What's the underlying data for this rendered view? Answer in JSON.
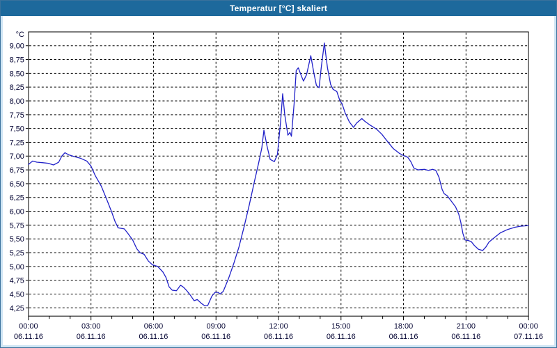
{
  "window": {
    "title": "Temperatur [°C] skaliert"
  },
  "colors": {
    "titlebar": "#1d699c",
    "title_text": "#ffffff",
    "frame": "#cfe5f4",
    "frame_border": "#39719c",
    "plot_background": "#ffffff",
    "plot_border": "#000000",
    "grid": "#000000",
    "axis_text": "#000030",
    "line": "#2020c8"
  },
  "chart_data": {
    "type": "line",
    "title": "Temperatur [°C] skaliert",
    "grid": {
      "dashed": true,
      "horizontal": true,
      "vertical": true
    },
    "legend": "none",
    "y_axis": {
      "unit_label": "°C",
      "range": [
        4.1,
        9.25
      ],
      "tick_values": [
        9.0,
        8.75,
        8.5,
        8.25,
        8.0,
        7.75,
        7.5,
        7.25,
        7.0,
        6.75,
        6.5,
        6.25,
        6.0,
        5.75,
        5.5,
        5.25,
        5.0,
        4.75,
        4.5,
        4.25
      ],
      "tick_labels": [
        "9,00",
        "8,75",
        "8,50",
        "8,25",
        "8,00",
        "7,75",
        "7,50",
        "7,25",
        "7,00",
        "6,75",
        "6,50",
        "6,25",
        "6,00",
        "5,75",
        "5,50",
        "5,25",
        "5,00",
        "4,75",
        "4,50",
        "4,25"
      ]
    },
    "x_axis": {
      "range_hours": [
        0,
        24
      ],
      "major_tick_every_hours": 3,
      "minor_tick_every_hours": 1,
      "tick_labels": [
        {
          "time": "00:00",
          "date": "06.11.16"
        },
        {
          "time": "03:00",
          "date": "06.11.16"
        },
        {
          "time": "06:00",
          "date": "06.11.16"
        },
        {
          "time": "09:00",
          "date": "06.11.16"
        },
        {
          "time": "12:00",
          "date": "06.11.16"
        },
        {
          "time": "15:00",
          "date": "06.11.16"
        },
        {
          "time": "18:00",
          "date": "06.11.16"
        },
        {
          "time": "21:00",
          "date": "06.11.16"
        },
        {
          "time": "00:00",
          "date": "07.11.16"
        }
      ]
    },
    "series": [
      {
        "name": "Temperatur [°C]",
        "color": "#2020c8",
        "points": [
          [
            0.0,
            6.85
          ],
          [
            0.2,
            6.91
          ],
          [
            0.4,
            6.89
          ],
          [
            0.7,
            6.88
          ],
          [
            0.95,
            6.87
          ],
          [
            1.2,
            6.84
          ],
          [
            1.45,
            6.89
          ],
          [
            1.6,
            7.0
          ],
          [
            1.75,
            7.06
          ],
          [
            1.95,
            7.02
          ],
          [
            2.2,
            6.99
          ],
          [
            2.5,
            6.96
          ],
          [
            2.8,
            6.91
          ],
          [
            3.0,
            6.82
          ],
          [
            3.2,
            6.65
          ],
          [
            3.5,
            6.45
          ],
          [
            3.75,
            6.22
          ],
          [
            4.0,
            5.98
          ],
          [
            4.15,
            5.82
          ],
          [
            4.3,
            5.7
          ],
          [
            4.6,
            5.68
          ],
          [
            4.75,
            5.61
          ],
          [
            5.0,
            5.48
          ],
          [
            5.2,
            5.32
          ],
          [
            5.35,
            5.25
          ],
          [
            5.55,
            5.22
          ],
          [
            5.75,
            5.1
          ],
          [
            5.95,
            5.03
          ],
          [
            6.2,
            5.0
          ],
          [
            6.45,
            4.9
          ],
          [
            6.6,
            4.8
          ],
          [
            6.75,
            4.63
          ],
          [
            6.9,
            4.57
          ],
          [
            7.1,
            4.56
          ],
          [
            7.3,
            4.66
          ],
          [
            7.45,
            4.62
          ],
          [
            7.6,
            4.56
          ],
          [
            7.75,
            4.49
          ],
          [
            7.95,
            4.38
          ],
          [
            8.1,
            4.4
          ],
          [
            8.3,
            4.33
          ],
          [
            8.45,
            4.29
          ],
          [
            8.6,
            4.29
          ],
          [
            8.8,
            4.46
          ],
          [
            8.95,
            4.53
          ],
          [
            9.1,
            4.53
          ],
          [
            9.2,
            4.5
          ],
          [
            9.35,
            4.55
          ],
          [
            9.6,
            4.78
          ],
          [
            9.85,
            5.05
          ],
          [
            10.1,
            5.35
          ],
          [
            10.35,
            5.72
          ],
          [
            10.6,
            6.12
          ],
          [
            10.85,
            6.55
          ],
          [
            11.05,
            6.88
          ],
          [
            11.2,
            7.15
          ],
          [
            11.3,
            7.47
          ],
          [
            11.45,
            7.18
          ],
          [
            11.6,
            6.94
          ],
          [
            11.8,
            6.9
          ],
          [
            11.95,
            7.03
          ],
          [
            12.1,
            7.62
          ],
          [
            12.2,
            8.13
          ],
          [
            12.3,
            7.75
          ],
          [
            12.45,
            7.38
          ],
          [
            12.55,
            7.43
          ],
          [
            12.62,
            7.36
          ],
          [
            12.75,
            7.95
          ],
          [
            12.85,
            8.55
          ],
          [
            12.95,
            8.6
          ],
          [
            13.1,
            8.45
          ],
          [
            13.2,
            8.36
          ],
          [
            13.35,
            8.48
          ],
          [
            13.55,
            8.82
          ],
          [
            13.7,
            8.5
          ],
          [
            13.82,
            8.28
          ],
          [
            13.95,
            8.24
          ],
          [
            14.05,
            8.6
          ],
          [
            14.2,
            9.05
          ],
          [
            14.35,
            8.6
          ],
          [
            14.5,
            8.3
          ],
          [
            14.62,
            8.21
          ],
          [
            14.8,
            8.17
          ],
          [
            14.95,
            8.0
          ],
          [
            15.05,
            7.95
          ],
          [
            15.2,
            7.78
          ],
          [
            15.4,
            7.62
          ],
          [
            15.6,
            7.52
          ],
          [
            15.75,
            7.6
          ],
          [
            16.0,
            7.68
          ],
          [
            16.15,
            7.63
          ],
          [
            16.4,
            7.56
          ],
          [
            16.7,
            7.49
          ],
          [
            16.95,
            7.4
          ],
          [
            17.2,
            7.28
          ],
          [
            17.5,
            7.14
          ],
          [
            17.8,
            7.05
          ],
          [
            18.0,
            7.01
          ],
          [
            18.2,
            6.98
          ],
          [
            18.35,
            6.9
          ],
          [
            18.5,
            6.78
          ],
          [
            18.7,
            6.75
          ],
          [
            19.0,
            6.76
          ],
          [
            19.2,
            6.74
          ],
          [
            19.4,
            6.76
          ],
          [
            19.55,
            6.74
          ],
          [
            19.7,
            6.62
          ],
          [
            19.85,
            6.4
          ],
          [
            19.95,
            6.32
          ],
          [
            20.1,
            6.28
          ],
          [
            20.3,
            6.18
          ],
          [
            20.5,
            6.08
          ],
          [
            20.65,
            5.95
          ],
          [
            20.75,
            5.8
          ],
          [
            20.85,
            5.6
          ],
          [
            20.95,
            5.48
          ],
          [
            21.1,
            5.47
          ],
          [
            21.25,
            5.45
          ],
          [
            21.4,
            5.38
          ],
          [
            21.6,
            5.31
          ],
          [
            21.8,
            5.29
          ],
          [
            21.95,
            5.35
          ],
          [
            22.1,
            5.44
          ],
          [
            22.35,
            5.52
          ],
          [
            22.65,
            5.61
          ],
          [
            23.0,
            5.67
          ],
          [
            23.35,
            5.71
          ],
          [
            23.65,
            5.73
          ],
          [
            24.0,
            5.74
          ]
        ]
      }
    ]
  }
}
